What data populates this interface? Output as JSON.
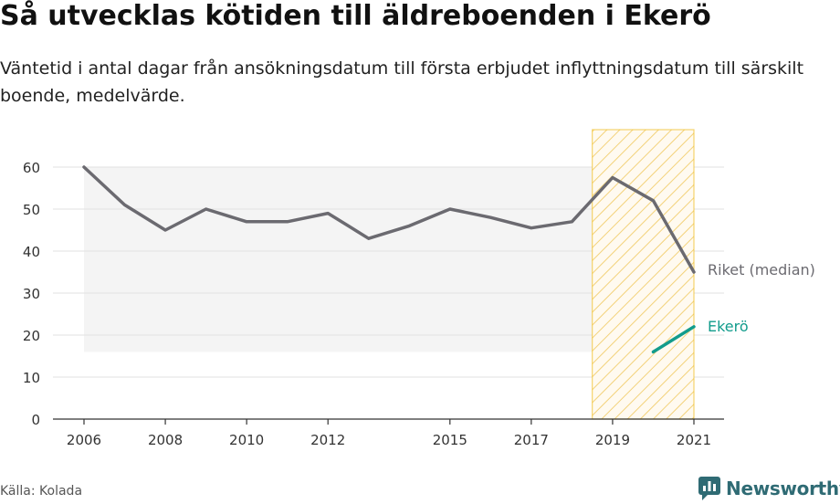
{
  "title": "Så utvecklas kötiden till äldreboenden i Ekerö",
  "subtitle": "Väntetid i antal dagar från ansökningsdatum till första erbjudet inflyttningsdatum till särskilt boende, medelvärde.",
  "source": "Källa: Kolada",
  "brand": "Newsworthy",
  "colors": {
    "riket": "#6b6a70",
    "ekero": "#129c8c",
    "highlight": "#f1c232",
    "band": "#f4f4f4",
    "grid": "#e2e2e2",
    "brand": "#2f6b74"
  },
  "chart_data": {
    "type": "line",
    "x_ticks": [
      2006,
      2008,
      2010,
      2012,
      2015,
      2017,
      2019,
      2021
    ],
    "y_ticks": [
      0,
      10,
      20,
      30,
      40,
      50,
      60
    ],
    "xlim": [
      2006,
      2021
    ],
    "ylim": [
      0,
      60
    ],
    "grid": true,
    "highlight_range": [
      2018.5,
      2021
    ],
    "band": {
      "x": [
        2006,
        2018.5
      ],
      "y": [
        16,
        60
      ]
    },
    "series": [
      {
        "name": "Riket (median)",
        "color": "#6b6a70",
        "x": [
          2006,
          2007,
          2008,
          2009,
          2010,
          2011,
          2012,
          2013,
          2014,
          2015,
          2016,
          2017,
          2018,
          2019,
          2020,
          2021
        ],
        "values": [
          60,
          51,
          45,
          50,
          47,
          47,
          49,
          43,
          46,
          50,
          48,
          45.5,
          47,
          57.5,
          52,
          35
        ]
      },
      {
        "name": "Ekerö",
        "color": "#129c8c",
        "x": [
          2020,
          2021
        ],
        "values": [
          16,
          22
        ]
      }
    ]
  }
}
